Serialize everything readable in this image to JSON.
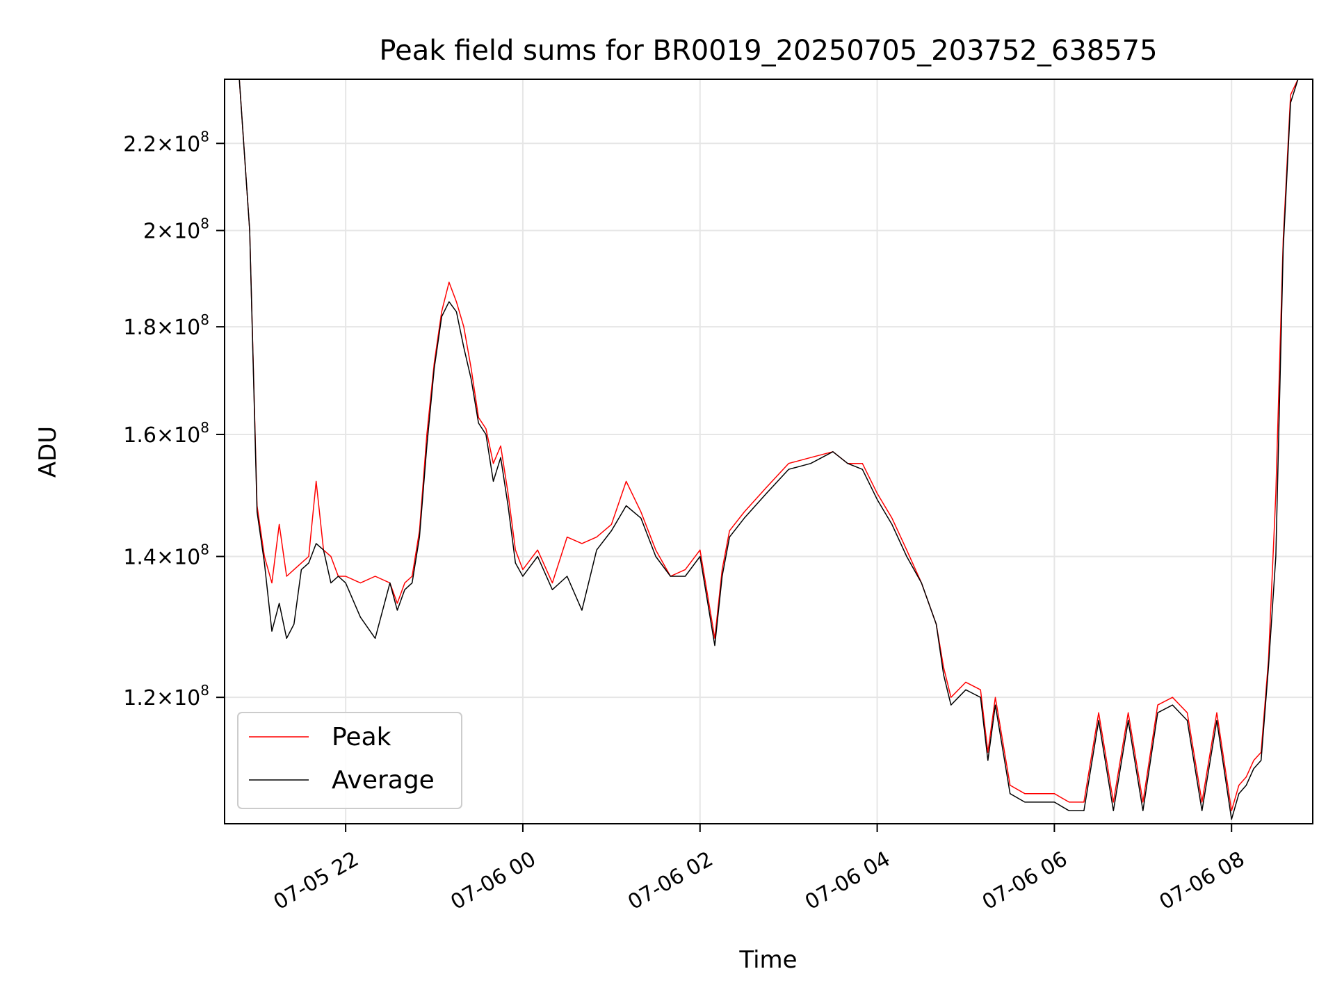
{
  "chart_data": {
    "type": "line",
    "title": "Peak field sums for BR0019_20250705_203752_638575",
    "xlabel": "Time",
    "ylabel": "ADU",
    "x_axis": "time",
    "y_scale": "log",
    "ylim": [
      104500000.0,
      236000000.0
    ],
    "xlim": [
      "2025-07-05 20:38",
      "2025-07-06 08:55"
    ],
    "grid": true,
    "legend_position": "lower-left",
    "x_ticks": [
      {
        "t": "2025-07-05 22:00",
        "label": "07-05 22"
      },
      {
        "t": "2025-07-06 00:00",
        "label": "07-06 00"
      },
      {
        "t": "2025-07-06 02:00",
        "label": "07-06 02"
      },
      {
        "t": "2025-07-06 04:00",
        "label": "07-06 04"
      },
      {
        "t": "2025-07-06 06:00",
        "label": "07-06 06"
      },
      {
        "t": "2025-07-06 08:00",
        "label": "07-06 08"
      }
    ],
    "y_ticks": [
      {
        "value": 120000000.0,
        "mantissa": "1.2",
        "exp": "8"
      },
      {
        "value": 140000000.0,
        "mantissa": "1.4",
        "exp": "8"
      },
      {
        "value": 160000000.0,
        "mantissa": "1.6",
        "exp": "8"
      },
      {
        "value": 180000000.0,
        "mantissa": "1.8",
        "exp": "8"
      },
      {
        "value": 200000000.0,
        "mantissa": "2",
        "exp": "8"
      },
      {
        "value": 220000000.0,
        "mantissa": "2.2",
        "exp": "8"
      }
    ],
    "series": [
      {
        "name": "Peak",
        "color": "#ff0000"
      },
      {
        "name": "Average",
        "color": "#000000"
      }
    ],
    "x": [
      "2025-07-05 20:38",
      "2025-07-05 20:48",
      "2025-07-05 20:55",
      "2025-07-05 21:00",
      "2025-07-05 21:05",
      "2025-07-05 21:10",
      "2025-07-05 21:15",
      "2025-07-05 21:20",
      "2025-07-05 21:25",
      "2025-07-05 21:30",
      "2025-07-05 21:35",
      "2025-07-05 21:40",
      "2025-07-05 21:45",
      "2025-07-05 21:50",
      "2025-07-05 21:55",
      "2025-07-05 22:00",
      "2025-07-05 22:10",
      "2025-07-05 22:20",
      "2025-07-05 22:30",
      "2025-07-05 22:35",
      "2025-07-05 22:40",
      "2025-07-05 22:45",
      "2025-07-05 22:50",
      "2025-07-05 22:55",
      "2025-07-05 23:00",
      "2025-07-05 23:05",
      "2025-07-05 23:10",
      "2025-07-05 23:15",
      "2025-07-05 23:20",
      "2025-07-05 23:25",
      "2025-07-05 23:30",
      "2025-07-05 23:35",
      "2025-07-05 23:40",
      "2025-07-05 23:45",
      "2025-07-05 23:50",
      "2025-07-05 23:55",
      "2025-07-06 00:00",
      "2025-07-06 00:10",
      "2025-07-06 00:20",
      "2025-07-06 00:30",
      "2025-07-06 00:40",
      "2025-07-06 00:50",
      "2025-07-06 01:00",
      "2025-07-06 01:10",
      "2025-07-06 01:20",
      "2025-07-06 01:30",
      "2025-07-06 01:40",
      "2025-07-06 01:50",
      "2025-07-06 02:00",
      "2025-07-06 02:10",
      "2025-07-06 02:15",
      "2025-07-06 02:20",
      "2025-07-06 02:30",
      "2025-07-06 02:45",
      "2025-07-06 03:00",
      "2025-07-06 03:15",
      "2025-07-06 03:30",
      "2025-07-06 03:40",
      "2025-07-06 03:50",
      "2025-07-06 04:00",
      "2025-07-06 04:10",
      "2025-07-06 04:20",
      "2025-07-06 04:30",
      "2025-07-06 04:40",
      "2025-07-06 04:45",
      "2025-07-06 04:50",
      "2025-07-06 05:00",
      "2025-07-06 05:10",
      "2025-07-06 05:15",
      "2025-07-06 05:20",
      "2025-07-06 05:30",
      "2025-07-06 05:40",
      "2025-07-06 05:50",
      "2025-07-06 06:00",
      "2025-07-06 06:10",
      "2025-07-06 06:20",
      "2025-07-06 06:30",
      "2025-07-06 06:40",
      "2025-07-06 06:50",
      "2025-07-06 07:00",
      "2025-07-06 07:10",
      "2025-07-06 07:20",
      "2025-07-06 07:30",
      "2025-07-06 07:40",
      "2025-07-06 07:50",
      "2025-07-06 08:00",
      "2025-07-06 08:05",
      "2025-07-06 08:10",
      "2025-07-06 08:15",
      "2025-07-06 08:20",
      "2025-07-06 08:25",
      "2025-07-06 08:30",
      "2025-07-06 08:35",
      "2025-07-06 08:40",
      "2025-07-06 08:45",
      "2025-07-06 08:55"
    ],
    "peak": [
      236000000.0,
      236000000.0,
      200000000.0,
      148000000.0,
      140000000.0,
      136000000.0,
      145000000.0,
      137000000.0,
      138000000.0,
      139000000.0,
      140000000.0,
      152000000.0,
      141000000.0,
      140000000.0,
      137000000.0,
      137000000.0,
      136000000.0,
      137000000.0,
      136000000.0,
      133000000.0,
      136000000.0,
      137000000.0,
      144000000.0,
      160000000.0,
      173000000.0,
      183000000.0,
      189000000.0,
      185000000.0,
      180000000.0,
      172000000.0,
      163000000.0,
      161000000.0,
      155000000.0,
      158000000.0,
      150000000.0,
      141000000.0,
      138000000.0,
      141000000.0,
      136000000.0,
      143000000.0,
      142000000.0,
      143000000.0,
      145000000.0,
      152000000.0,
      147000000.0,
      141000000.0,
      137000000.0,
      138000000.0,
      141000000.0,
      128000000.0,
      138000000.0,
      144000000.0,
      147000000.0,
      151000000.0,
      155000000.0,
      156000000.0,
      157000000.0,
      155000000.0,
      155000000.0,
      150000000.0,
      146000000.0,
      141000000.0,
      136000000.0,
      130000000.0,
      124000000.0,
      120000000.0,
      122000000.0,
      121000000.0,
      113000000.0,
      120000000.0,
      109000000.0,
      108000000.0,
      108000000.0,
      108000000.0,
      107000000.0,
      107000000.0,
      118000000.0,
      107000000.0,
      118000000.0,
      107000000.0,
      119000000.0,
      120000000.0,
      118000000.0,
      107000000.0,
      118000000.0,
      106000000.0,
      109000000.0,
      110000000.0,
      112000000.0,
      113000000.0,
      125000000.0,
      150000000.0,
      198000000.0,
      232000000.0,
      236000000.0,
      236000000.0
    ],
    "average": [
      236000000.0,
      236000000.0,
      200000000.0,
      147000000.0,
      139000000.0,
      129000000.0,
      133000000.0,
      128000000.0,
      130000000.0,
      138000000.0,
      139000000.0,
      142000000.0,
      141000000.0,
      136000000.0,
      137000000.0,
      136000000.0,
      131000000.0,
      128000000.0,
      136000000.0,
      132000000.0,
      135000000.0,
      136000000.0,
      143000000.0,
      158000000.0,
      172000000.0,
      182000000.0,
      185000000.0,
      183000000.0,
      176000000.0,
      170000000.0,
      162000000.0,
      160000000.0,
      152000000.0,
      156000000.0,
      148000000.0,
      139000000.0,
      137000000.0,
      140000000.0,
      135000000.0,
      137000000.0,
      132000000.0,
      141000000.0,
      144000000.0,
      148000000.0,
      146000000.0,
      140000000.0,
      137000000.0,
      137000000.0,
      140000000.0,
      127000000.0,
      137000000.0,
      143000000.0,
      146000000.0,
      150000000.0,
      154000000.0,
      155000000.0,
      157000000.0,
      155000000.0,
      154000000.0,
      149000000.0,
      145000000.0,
      140000000.0,
      136000000.0,
      130000000.0,
      123000000.0,
      119000000.0,
      121000000.0,
      120000000.0,
      112000000.0,
      119000000.0,
      108000000.0,
      107000000.0,
      107000000.0,
      107000000.0,
      106000000.0,
      106000000.0,
      117000000.0,
      106000000.0,
      117000000.0,
      106000000.0,
      118000000.0,
      119000000.0,
      117000000.0,
      106000000.0,
      117000000.0,
      105000000.0,
      108000000.0,
      109000000.0,
      111000000.0,
      112000000.0,
      124000000.0,
      140000000.0,
      196000000.0,
      230000000.0,
      236000000.0,
      236000000.0
    ]
  }
}
